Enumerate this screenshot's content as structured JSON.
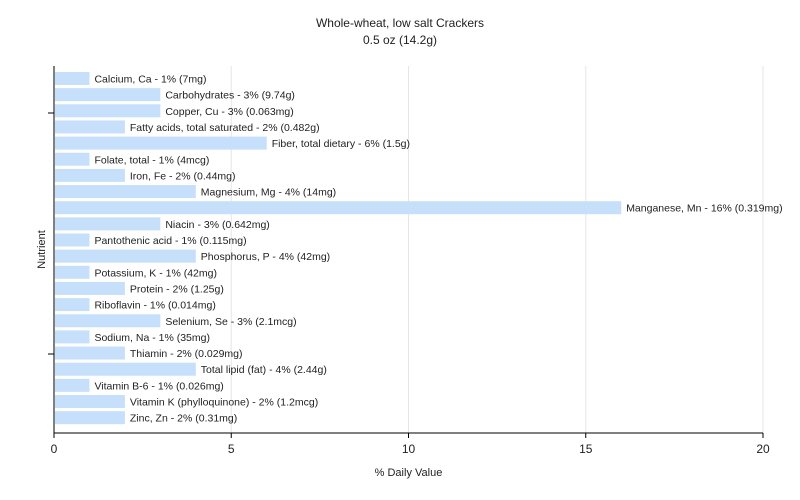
{
  "chart_data": {
    "type": "bar",
    "orientation": "horizontal",
    "title": "Whole-wheat, low salt Crackers",
    "subtitle": "0.5 oz (14.2g)",
    "xlabel": "% Daily Value",
    "ylabel": "Nutrient",
    "xlim": [
      0,
      20
    ],
    "xticks": [
      0,
      5,
      10,
      15,
      20
    ],
    "grid": true,
    "bar_color": "#c6dffa",
    "categories": [
      "Calcium, Ca - 1% (7mg)",
      "Carbohydrates - 3% (9.74g)",
      "Copper, Cu - 3% (0.063mg)",
      "Fatty acids, total saturated - 2% (0.482g)",
      "Fiber, total dietary - 6% (1.5g)",
      "Folate, total - 1% (4mcg)",
      "Iron, Fe - 2% (0.44mg)",
      "Magnesium, Mg - 4% (14mg)",
      "Manganese, Mn - 16% (0.319mg)",
      "Niacin - 3% (0.642mg)",
      "Pantothenic acid - 1% (0.115mg)",
      "Phosphorus, P - 4% (42mg)",
      "Potassium, K - 1% (42mg)",
      "Protein - 2% (1.25g)",
      "Riboflavin - 1% (0.014mg)",
      "Selenium, Se - 3% (2.1mcg)",
      "Sodium, Na - 1% (35mg)",
      "Thiamin - 2% (0.029mg)",
      "Total lipid (fat) - 4% (2.44g)",
      "Vitamin B-6 - 1% (0.026mg)",
      "Vitamin K (phylloquinone) - 2% (1.2mcg)",
      "Zinc, Zn - 2% (0.31mg)"
    ],
    "values": [
      1,
      3,
      3,
      2,
      6,
      1,
      2,
      4,
      16,
      3,
      1,
      4,
      1,
      2,
      1,
      3,
      1,
      2,
      4,
      1,
      2,
      2
    ]
  }
}
